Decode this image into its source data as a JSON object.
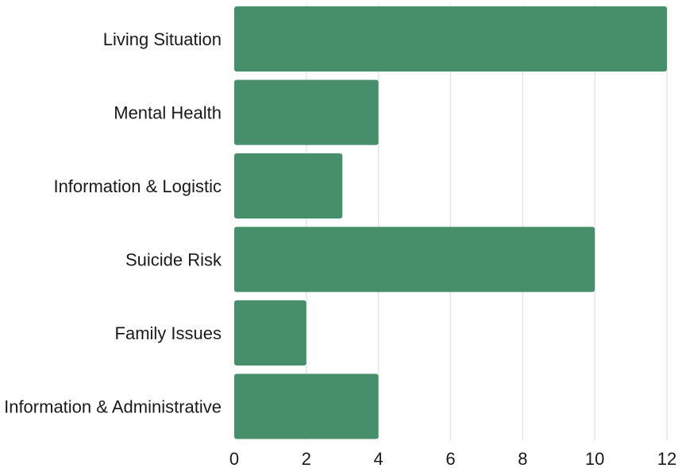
{
  "chart_data": {
    "type": "bar",
    "orientation": "horizontal",
    "categories": [
      "Living Situation",
      "Mental Health",
      "Information & Logistic",
      "Suicide Risk",
      "Family Issues",
      "Information & Administrative"
    ],
    "values": [
      12,
      4,
      3,
      10,
      2,
      4
    ],
    "xlim": [
      0,
      12
    ],
    "xticks": [
      "0",
      "2",
      "4",
      "6",
      "8",
      "10",
      "12"
    ],
    "grid": "vertical",
    "bar_color": "#478f6a",
    "title": "",
    "xlabel": "",
    "ylabel": ""
  }
}
